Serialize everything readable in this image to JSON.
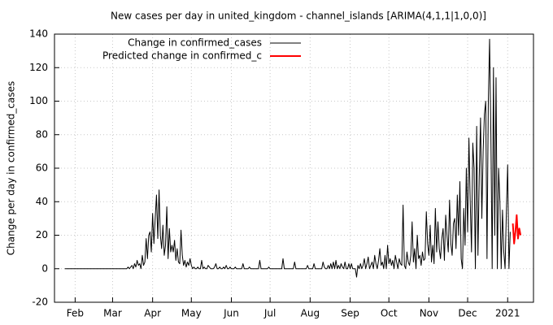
{
  "chart_data": {
    "type": "line",
    "title": "New cases per day in united_kingdom - channel_islands [ARIMA(4,1,1|1,0,0)]",
    "y_label": "Change per day in confirmed_cases",
    "xlim": [
      16,
      387
    ],
    "ylim": [
      -20,
      140
    ],
    "xticks": [
      {
        "value": 32,
        "label": "Feb"
      },
      {
        "value": 61,
        "label": "Mar"
      },
      {
        "value": 92,
        "label": "Apr"
      },
      {
        "value": 122,
        "label": "May"
      },
      {
        "value": 153,
        "label": "Jun"
      },
      {
        "value": 183,
        "label": "Jul"
      },
      {
        "value": 214,
        "label": "Aug"
      },
      {
        "value": 245,
        "label": "Sep"
      },
      {
        "value": 275,
        "label": "Oct"
      },
      {
        "value": 306,
        "label": "Nov"
      },
      {
        "value": 336,
        "label": "Dec"
      },
      {
        "value": 367,
        "label": "2021"
      }
    ],
    "yticks": [
      -20,
      0,
      20,
      40,
      60,
      80,
      100,
      120,
      140
    ],
    "grid": true,
    "legend": "top-left",
    "series": [
      {
        "name": "Change in confirmed_cases",
        "color": "#000000",
        "x": [
          24,
          25,
          26,
          27,
          28,
          29,
          30,
          31,
          32,
          33,
          34,
          35,
          36,
          37,
          38,
          39,
          40,
          41,
          42,
          43,
          44,
          45,
          46,
          47,
          48,
          49,
          50,
          51,
          52,
          53,
          54,
          55,
          56,
          57,
          58,
          59,
          60,
          61,
          62,
          63,
          64,
          65,
          66,
          67,
          68,
          69,
          70,
          71,
          72,
          73,
          74,
          75,
          76,
          77,
          78,
          79,
          80,
          81,
          82,
          83,
          84,
          85,
          86,
          87,
          88,
          89,
          90,
          91,
          92,
          93,
          94,
          95,
          96,
          97,
          98,
          99,
          100,
          101,
          102,
          103,
          104,
          105,
          106,
          107,
          108,
          109,
          110,
          111,
          112,
          113,
          114,
          115,
          116,
          117,
          118,
          119,
          120,
          121,
          122,
          123,
          124,
          125,
          126,
          127,
          128,
          129,
          130,
          131,
          132,
          133,
          134,
          135,
          136,
          137,
          138,
          139,
          140,
          141,
          142,
          143,
          144,
          145,
          146,
          147,
          148,
          149,
          150,
          151,
          152,
          153,
          154,
          155,
          156,
          157,
          158,
          159,
          160,
          161,
          162,
          163,
          164,
          165,
          166,
          167,
          168,
          169,
          170,
          171,
          172,
          173,
          174,
          175,
          176,
          177,
          178,
          179,
          180,
          181,
          182,
          183,
          184,
          185,
          186,
          187,
          188,
          189,
          190,
          191,
          192,
          193,
          194,
          195,
          196,
          197,
          198,
          199,
          200,
          201,
          202,
          203,
          204,
          205,
          206,
          207,
          208,
          209,
          210,
          211,
          212,
          213,
          214,
          215,
          216,
          217,
          218,
          219,
          220,
          221,
          222,
          223,
          224,
          225,
          226,
          227,
          228,
          229,
          230,
          231,
          232,
          233,
          234,
          235,
          236,
          237,
          238,
          239,
          240,
          241,
          242,
          243,
          244,
          245,
          246,
          247,
          248,
          249,
          250,
          251,
          252,
          253,
          254,
          255,
          256,
          257,
          258,
          259,
          260,
          261,
          262,
          263,
          264,
          265,
          266,
          267,
          268,
          269,
          270,
          271,
          272,
          273,
          274,
          275,
          276,
          277,
          278,
          279,
          280,
          281,
          282,
          283,
          284,
          285,
          286,
          287,
          288,
          289,
          290,
          291,
          292,
          293,
          294,
          295,
          296,
          297,
          298,
          299,
          300,
          301,
          302,
          303,
          304,
          305,
          306,
          307,
          308,
          309,
          310,
          311,
          312,
          313,
          314,
          315,
          316,
          317,
          318,
          319,
          320,
          321,
          322,
          323,
          324,
          325,
          326,
          327,
          328,
          329,
          330,
          331,
          332,
          333,
          334,
          335,
          336,
          337,
          338,
          339,
          340,
          341,
          342,
          343,
          344,
          345,
          346,
          347,
          348,
          349,
          350,
          351,
          352,
          353,
          354,
          355,
          356,
          357,
          358,
          359,
          360,
          361,
          362,
          363,
          364,
          365,
          366,
          367,
          368,
          369
        ],
        "values": [
          0,
          0,
          0,
          0,
          0,
          0,
          0,
          0,
          0,
          0,
          0,
          0,
          0,
          0,
          0,
          0,
          0,
          0,
          0,
          0,
          0,
          0,
          0,
          0,
          0,
          0,
          0,
          0,
          0,
          0,
          0,
          0,
          0,
          0,
          0,
          0,
          0,
          0,
          0,
          0,
          0,
          0,
          0,
          0,
          0,
          0,
          0,
          0,
          0,
          1,
          0,
          1,
          2,
          0,
          3,
          1,
          5,
          2,
          3,
          0,
          8,
          2,
          4,
          18,
          6,
          20,
          22,
          10,
          33,
          15,
          30,
          44,
          18,
          47,
          20,
          12,
          26,
          8,
          14,
          37,
          6,
          24,
          10,
          14,
          10,
          17,
          5,
          12,
          4,
          3,
          23,
          8,
          2,
          5,
          1,
          4,
          2,
          6,
          2,
          0,
          1,
          0,
          0,
          1,
          0,
          0,
          5,
          0,
          1,
          0,
          0,
          2,
          1,
          0,
          0,
          0,
          1,
          3,
          0,
          0,
          1,
          0,
          0,
          1,
          0,
          2,
          0,
          0,
          1,
          0,
          0,
          0,
          1,
          0,
          0,
          0,
          0,
          0,
          3,
          0,
          0,
          0,
          0,
          1,
          0,
          0,
          0,
          0,
          0,
          0,
          0,
          5,
          0,
          0,
          0,
          0,
          0,
          0,
          1,
          0,
          0,
          0,
          0,
          0,
          0,
          0,
          0,
          0,
          0,
          6,
          0,
          0,
          0,
          0,
          0,
          0,
          0,
          0,
          4,
          0,
          0,
          0,
          0,
          0,
          0,
          0,
          0,
          0,
          2,
          0,
          0,
          0,
          0,
          3,
          0,
          0,
          0,
          0,
          0,
          0,
          4,
          1,
          0,
          0,
          2,
          0,
          3,
          0,
          4,
          0,
          5,
          0,
          2,
          0,
          3,
          1,
          0,
          4,
          0,
          0,
          3,
          0,
          3,
          0,
          0,
          0,
          -5,
          2,
          0,
          3,
          0,
          2,
          6,
          0,
          3,
          7,
          0,
          2,
          4,
          0,
          8,
          3,
          0,
          5,
          12,
          2,
          4,
          0,
          8,
          0,
          14,
          3,
          6,
          2,
          5,
          0,
          8,
          4,
          0,
          6,
          3,
          2,
          38,
          2,
          0,
          10,
          4,
          2,
          8,
          28,
          4,
          12,
          0,
          20,
          6,
          8,
          2,
          10,
          5,
          6,
          34,
          15,
          8,
          26,
          4,
          14,
          3,
          36,
          10,
          28,
          12,
          6,
          18,
          24,
          5,
          32,
          20,
          10,
          41,
          15,
          8,
          27,
          30,
          12,
          44,
          20,
          52,
          6,
          0,
          36,
          14,
          60,
          22,
          78,
          40,
          10,
          75,
          60,
          0,
          85,
          8,
          55,
          90,
          30,
          70,
          92,
          100,
          6,
          98,
          137,
          80,
          0,
          120,
          20,
          114,
          0,
          60,
          40,
          0,
          35,
          10,
          0,
          34,
          62,
          0,
          22
        ]
      },
      {
        "name": "Predicted change in confirmed_c",
        "color": "#ff0000",
        "x": [
          371,
          372,
          373,
          374,
          375,
          376,
          377
        ],
        "values": [
          27,
          15,
          22,
          32,
          18,
          24,
          20
        ]
      }
    ]
  }
}
